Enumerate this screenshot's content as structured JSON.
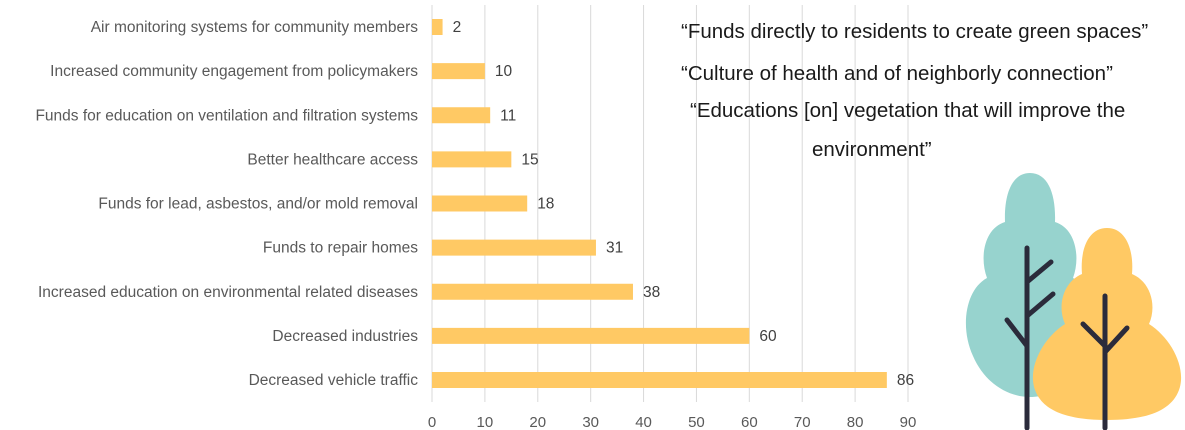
{
  "chart_data": {
    "type": "bar",
    "orientation": "horizontal",
    "categories": [
      "Air monitoring systems for community members",
      "Increased community engagement from policymakers",
      "Funds for education on ventilation and filtration systems",
      "Better healthcare access",
      "Funds for lead, asbestos, and/or mold removal",
      "Funds to repair homes",
      "Increased education on environmental related diseases",
      "Decreased industries",
      "Decreased vehicle traffic"
    ],
    "values": [
      2,
      10,
      11,
      15,
      18,
      31,
      38,
      60,
      86
    ],
    "xlim": [
      0,
      90
    ],
    "xticks": [
      0,
      10,
      20,
      30,
      40,
      50,
      60,
      70,
      80,
      90
    ],
    "grid": "vertical",
    "data_labels": true,
    "bar_color": "#FFC964",
    "grid_color": "#D9D9D9"
  },
  "quotes": {
    "line1": "“Funds directly to residents to create green spaces”",
    "line2": "“Culture of health and of neighborly connection”",
    "line3": "“Educations [on] vegetation that will improve the",
    "line4": "environment”"
  },
  "illustration": {
    "icon": "trees-illustration",
    "colors": {
      "teal": "#97D3CE",
      "yellow": "#FFC964",
      "trunk": "#2B2B3B"
    }
  }
}
